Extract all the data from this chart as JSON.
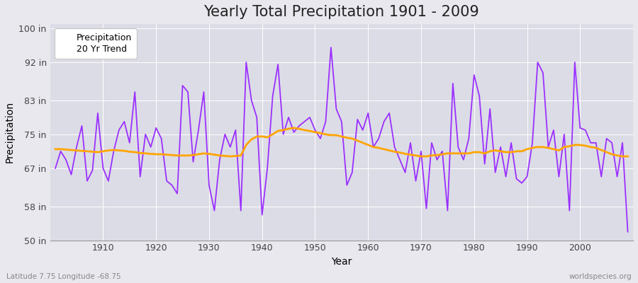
{
  "title": "Yearly Total Precipitation 1901 - 2009",
  "xlabel": "Year",
  "ylabel": "Precipitation",
  "subtitle": "Latitude 7.75 Longitude -68.75",
  "watermark": "worldspecies.org",
  "years": [
    1901,
    1902,
    1903,
    1904,
    1905,
    1906,
    1907,
    1908,
    1909,
    1910,
    1911,
    1912,
    1913,
    1914,
    1915,
    1916,
    1917,
    1918,
    1919,
    1920,
    1921,
    1922,
    1923,
    1924,
    1925,
    1926,
    1927,
    1928,
    1929,
    1930,
    1931,
    1932,
    1933,
    1934,
    1935,
    1936,
    1937,
    1938,
    1939,
    1940,
    1941,
    1942,
    1943,
    1944,
    1945,
    1946,
    1947,
    1948,
    1949,
    1950,
    1951,
    1952,
    1953,
    1954,
    1955,
    1956,
    1957,
    1958,
    1959,
    1960,
    1961,
    1962,
    1963,
    1964,
    1965,
    1966,
    1967,
    1968,
    1969,
    1970,
    1971,
    1972,
    1973,
    1974,
    1975,
    1976,
    1977,
    1978,
    1979,
    1980,
    1981,
    1982,
    1983,
    1984,
    1985,
    1986,
    1987,
    1988,
    1989,
    1990,
    1991,
    1992,
    1993,
    1994,
    1995,
    1996,
    1997,
    1998,
    1999,
    2000,
    2001,
    2002,
    2003,
    2004,
    2005,
    2006,
    2007,
    2008,
    2009
  ],
  "precipitation": [
    67.0,
    71.0,
    69.0,
    65.5,
    72.0,
    77.0,
    64.0,
    66.5,
    80.0,
    67.0,
    64.0,
    71.0,
    76.0,
    78.0,
    73.0,
    85.0,
    65.0,
    75.0,
    72.0,
    76.5,
    74.0,
    64.0,
    63.0,
    61.0,
    86.5,
    85.0,
    68.5,
    76.0,
    85.0,
    63.0,
    57.0,
    69.0,
    75.0,
    72.0,
    76.0,
    57.0,
    92.0,
    83.0,
    79.0,
    56.0,
    67.0,
    84.0,
    91.5,
    75.0,
    79.0,
    75.5,
    77.0,
    78.0,
    79.0,
    76.0,
    74.0,
    78.0,
    95.5,
    81.0,
    78.0,
    63.0,
    66.0,
    78.5,
    76.0,
    80.0,
    72.0,
    74.0,
    78.0,
    80.0,
    72.0,
    69.0,
    66.0,
    73.0,
    64.0,
    71.0,
    57.5,
    73.0,
    69.0,
    71.0,
    57.0,
    87.0,
    72.0,
    69.0,
    74.0,
    89.0,
    84.0,
    68.0,
    81.0,
    66.0,
    72.0,
    65.0,
    73.0,
    64.5,
    63.5,
    65.0,
    73.0,
    92.0,
    89.5,
    72.0,
    76.0,
    65.0,
    75.0,
    57.0,
    92.0,
    76.5,
    76.0,
    73.0,
    73.0,
    65.0,
    74.0,
    73.0,
    65.0,
    73.0,
    52.0
  ],
  "trend": [
    71.5,
    71.5,
    71.4,
    71.3,
    71.2,
    71.1,
    71.0,
    70.9,
    70.8,
    71.0,
    71.2,
    71.3,
    71.2,
    71.1,
    70.9,
    70.8,
    70.6,
    70.5,
    70.4,
    70.3,
    70.3,
    70.2,
    70.1,
    70.0,
    70.0,
    70.0,
    70.1,
    70.3,
    70.5,
    70.4,
    70.2,
    70.0,
    69.9,
    69.8,
    69.9,
    70.0,
    72.5,
    73.8,
    74.5,
    74.5,
    74.3,
    75.0,
    75.8,
    76.0,
    76.3,
    76.5,
    76.3,
    76.0,
    75.8,
    75.5,
    75.3,
    75.0,
    74.8,
    74.8,
    74.5,
    74.2,
    74.0,
    73.5,
    73.0,
    72.5,
    72.0,
    71.8,
    71.5,
    71.2,
    70.9,
    70.7,
    70.4,
    70.2,
    70.0,
    69.8,
    69.8,
    70.0,
    70.1,
    70.3,
    70.5,
    70.5,
    70.5,
    70.5,
    70.5,
    70.8,
    70.8,
    70.5,
    71.0,
    71.2,
    71.0,
    70.8,
    70.8,
    71.0,
    71.0,
    71.5,
    71.8,
    72.0,
    72.0,
    71.8,
    71.5,
    71.2,
    72.0,
    72.2,
    72.5,
    72.5,
    72.3,
    72.0,
    71.8,
    71.3,
    70.8,
    70.3,
    70.0,
    69.8,
    69.8
  ],
  "precip_color": "#9B30FF",
  "trend_color": "#FFA500",
  "fig_bg_color": "#E8E8EE",
  "plot_bg_color": "#DCDCE6",
  "yticks": [
    50,
    58,
    67,
    75,
    83,
    92,
    100
  ],
  "ytick_labels": [
    "50 in",
    "58 in",
    "67 in",
    "75 in",
    "83 in",
    "92 in",
    "100 in"
  ],
  "ylim": [
    50,
    101
  ],
  "xlim": [
    1900,
    2010
  ],
  "xticks": [
    1910,
    1920,
    1930,
    1940,
    1950,
    1960,
    1970,
    1980,
    1990,
    2000
  ],
  "grid_color": "#FFFFFF",
  "title_fontsize": 15,
  "axis_fontsize": 9,
  "label_fontsize": 10,
  "legend_fontsize": 9
}
